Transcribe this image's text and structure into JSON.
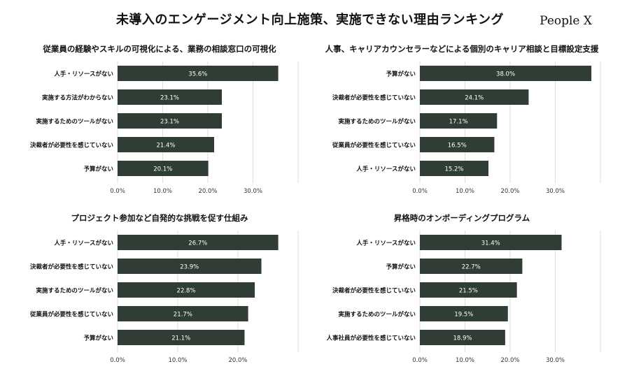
{
  "header": {
    "title": "未導入のエンゲージメント向上施策、実施できない理由ランキング",
    "brand": "People X"
  },
  "colors": {
    "bar": "#2f3d34",
    "bar_label": "#ffffff",
    "grid": "#dddddd"
  },
  "chart_data": [
    {
      "type": "bar",
      "orientation": "horizontal",
      "title": "従業員の経験やスキルの可視化による、業務の相談窓口の可視化",
      "categories": [
        "人手・リソースがない",
        "実施する方法がわからない",
        "実施するためのツールがない",
        "決裁者が必要性を感じていない",
        "予算がない"
      ],
      "values": [
        35.6,
        23.1,
        23.1,
        21.4,
        20.1
      ],
      "data_labels": [
        "35.6%",
        "23.1%",
        "23.1%",
        "21.4%",
        "20.1%"
      ],
      "xticks": [
        "0.0%",
        "10.0%",
        "20.0%",
        "30.0%"
      ],
      "xlim": [
        0,
        40
      ],
      "grid": true
    },
    {
      "type": "bar",
      "orientation": "horizontal",
      "title": "人事、キャリアカウンセラーなどによる個別のキャリア相談と目標設定支援",
      "categories": [
        "予算がない",
        "決裁者が必要性を感じていない",
        "実施するためのツールがない",
        "従業員が必要性を感じていない",
        "人手・リソースがない"
      ],
      "values": [
        38.0,
        24.1,
        17.1,
        16.5,
        15.2
      ],
      "data_labels": [
        "38.0%",
        "24.1%",
        "17.1%",
        "16.5%",
        "15.2%"
      ],
      "xticks": [
        "0.0%",
        "10.0%",
        "20.0%",
        "30.0%"
      ],
      "xlim": [
        0,
        40
      ],
      "grid": true
    },
    {
      "type": "bar",
      "orientation": "horizontal",
      "title": "プロジェクト参加など自発的な挑戦を促す仕組み",
      "categories": [
        "人手・リソースがない",
        "決裁者が必要性を感じていない",
        "実施するためのツールがない",
        "従業員が必要性を感じていない",
        "予算がない"
      ],
      "values": [
        26.7,
        23.9,
        22.8,
        21.7,
        21.1
      ],
      "data_labels": [
        "26.7%",
        "23.9%",
        "22.8%",
        "21.7%",
        "21.1%"
      ],
      "xticks": [
        "0.0%",
        "10.0%",
        "20.0%"
      ],
      "xlim": [
        0,
        30
      ],
      "grid": true
    },
    {
      "type": "bar",
      "orientation": "horizontal",
      "title": "昇格時のオンボーディングプログラム",
      "categories": [
        "人手・リソースがない",
        "予算がない",
        "決裁者が必要性を感じていない",
        "実施するためのツールがない",
        "人事社員が必要性を感じていない"
      ],
      "values": [
        31.4,
        22.7,
        21.5,
        19.5,
        18.9
      ],
      "data_labels": [
        "31.4%",
        "22.7%",
        "21.5%",
        "19.5%",
        "18.9%"
      ],
      "xticks": [
        "0.0%",
        "10.0%",
        "20.0%",
        "30.0%"
      ],
      "xlim": [
        0,
        40
      ],
      "grid": true
    }
  ]
}
